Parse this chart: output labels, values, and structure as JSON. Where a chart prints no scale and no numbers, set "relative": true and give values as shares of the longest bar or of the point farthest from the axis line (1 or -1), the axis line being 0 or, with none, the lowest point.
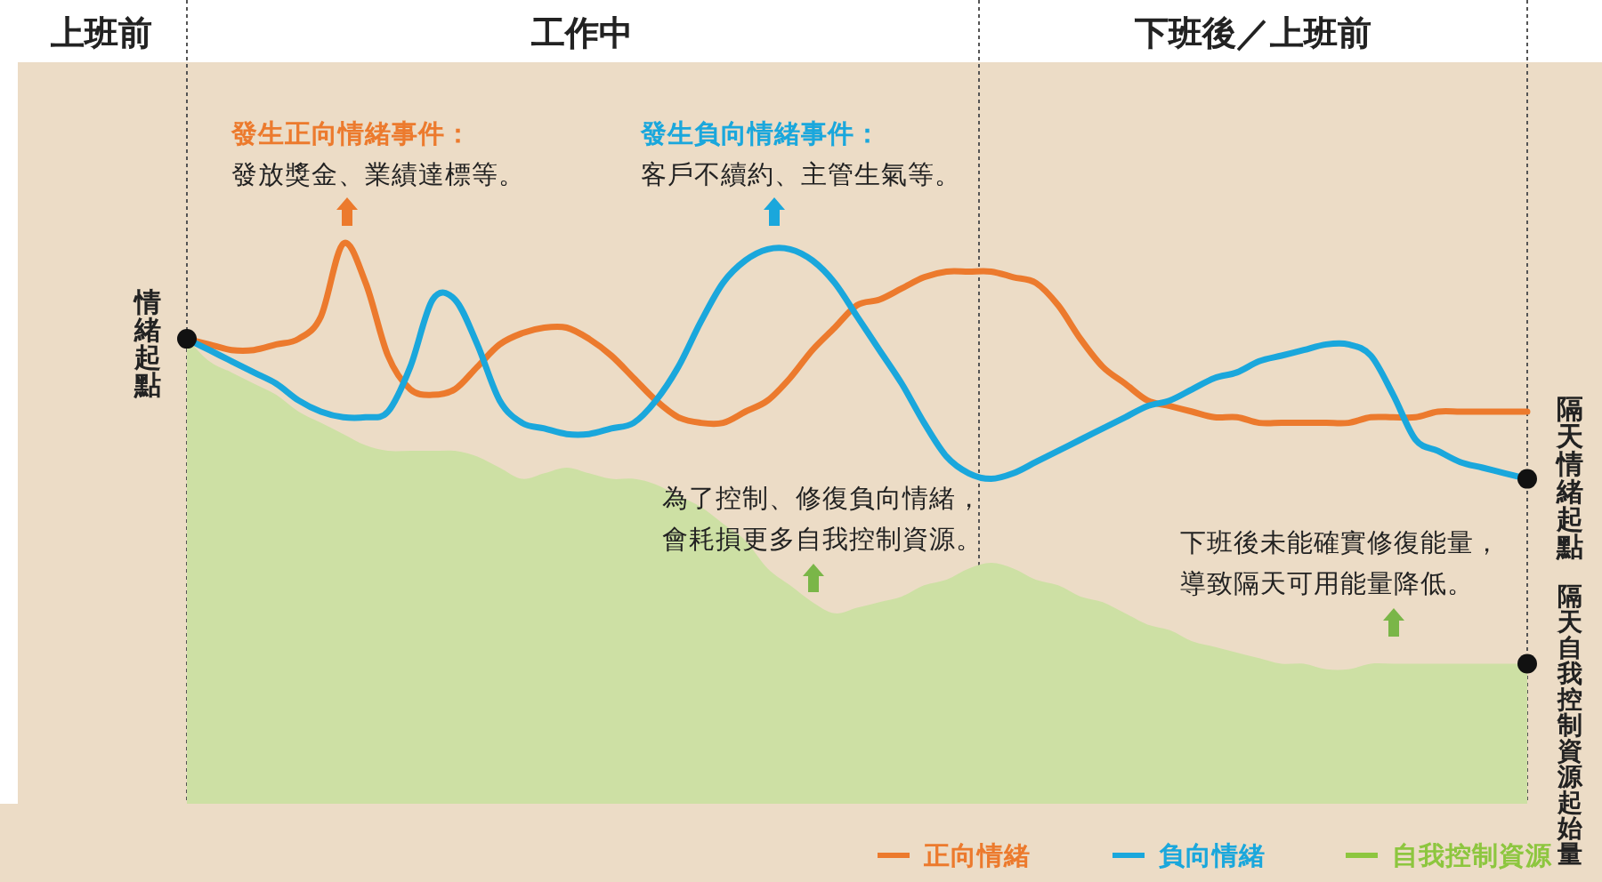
{
  "chart_data": {
    "type": "line",
    "relative": true,
    "legend": "bottom right",
    "marker": "none",
    "line_style": "solid",
    "categories": [
      null,
      null,
      null,
      null,
      null,
      null,
      null,
      null,
      null,
      null,
      null,
      null,
      null,
      null,
      null,
      null,
      null,
      null,
      null,
      null,
      null,
      null,
      null,
      null,
      null,
      null,
      null,
      null,
      null,
      null,
      null,
      null,
      null,
      null,
      null,
      null,
      null,
      null,
      null,
      null,
      null,
      null,
      null,
      null,
      null,
      null,
      null,
      null,
      null,
      null,
      null,
      null,
      null,
      null,
      null,
      null,
      null,
      null,
      null,
      null,
      null
    ],
    "series": [
      {
        "name": "正向情緒",
        "color": "#ec7a2d",
        "values": [
          0.83,
          0.82,
          0.81,
          0.81,
          0.82,
          0.83,
          0.87,
          1,
          0.93,
          0.8,
          0.74,
          0.73,
          0.74,
          0.78,
          0.82,
          0.84,
          0.85,
          0.85,
          0.83,
          0.8,
          0.76,
          0.72,
          0.69,
          0.68,
          0.68,
          0.7,
          0.72,
          0.76,
          0.81,
          0.85,
          0.89,
          0.9,
          0.92,
          0.94,
          0.95,
          0.95,
          0.95,
          0.94,
          0.93,
          0.89,
          0.83,
          0.78,
          0.75,
          0.72,
          0.71,
          0.7,
          0.69,
          0.69,
          0.68,
          0.68,
          0.68,
          0.68,
          0.68,
          0.69,
          0.69,
          0.69,
          0.7,
          0.7,
          0.7,
          0.7,
          0.7
        ]
      },
      {
        "name": "負向情緒",
        "color": "#1aa7dc",
        "values": [
          0.83,
          0.81,
          0.79,
          0.77,
          0.75,
          0.72,
          0.7,
          0.69,
          0.69,
          0.7,
          0.78,
          0.9,
          0.9,
          0.82,
          0.72,
          0.68,
          0.67,
          0.66,
          0.66,
          0.67,
          0.68,
          0.72,
          0.78,
          0.86,
          0.93,
          0.97,
          0.99,
          0.99,
          0.97,
          0.93,
          0.87,
          0.81,
          0.75,
          0.68,
          0.62,
          0.59,
          0.58,
          0.59,
          0.61,
          0.63,
          0.65,
          0.67,
          0.69,
          0.71,
          0.72,
          0.74,
          0.76,
          0.77,
          0.79,
          0.8,
          0.81,
          0.82,
          0.82,
          0.8,
          0.73,
          0.65,
          0.63,
          0.61,
          0.6,
          0.59,
          0.58
        ]
      },
      {
        "name": "自我控制資源",
        "type": "area",
        "color": "#cde0a4",
        "values": [
          0.83,
          0.79,
          0.77,
          0.75,
          0.73,
          0.7,
          0.68,
          0.66,
          0.64,
          0.63,
          0.63,
          0.63,
          0.63,
          0.62,
          0.6,
          0.58,
          0.59,
          0.6,
          0.59,
          0.58,
          0.58,
          0.57,
          0.55,
          0.53,
          0.5,
          0.47,
          0.42,
          0.39,
          0.36,
          0.34,
          0.35,
          0.36,
          0.37,
          0.39,
          0.4,
          0.42,
          0.43,
          0.42,
          0.4,
          0.39,
          0.37,
          0.36,
          0.34,
          0.32,
          0.31,
          0.29,
          0.28,
          0.27,
          0.26,
          0.25,
          0.25,
          0.24,
          0.24,
          0.25,
          0.25,
          0.25,
          0.25,
          0.25,
          0.25,
          0.25,
          0.25
        ]
      }
    ],
    "annotations": [
      "上班前",
      "工作中",
      "下班後／上班前",
      "發生正向情緒事件：",
      "發放獎金、業績達標等。",
      "發生負向情緒事件：",
      "客戶不續約、主管生氣等。",
      "為了控制、修復負向情緒，",
      "會耗損更多自我控制資源。",
      "下班後未能確實修復能量，",
      "導致隔天可用能量降低。",
      "情緒起點",
      "隔天情緒起點",
      "隔天自我控制資源起始量"
    ]
  }
}
